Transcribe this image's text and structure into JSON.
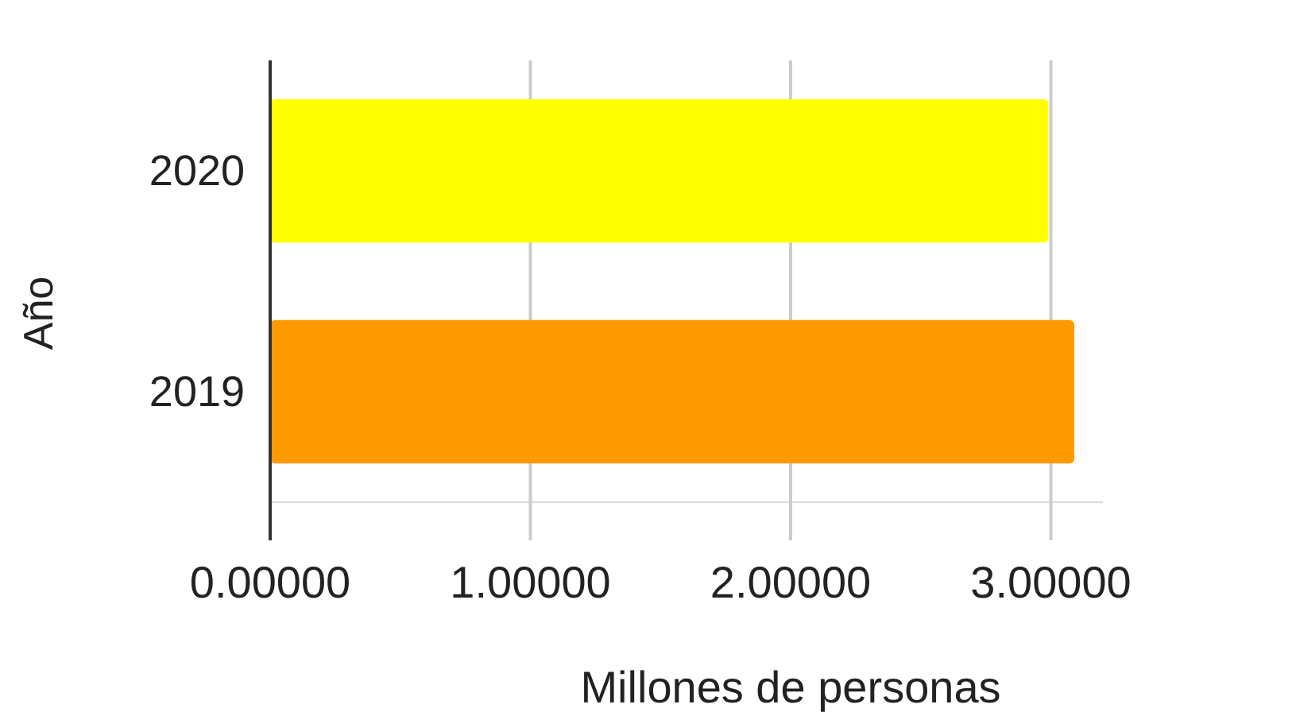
{
  "chart_data": {
    "type": "bar",
    "orientation": "horizontal",
    "categories": [
      "2020",
      "2019"
    ],
    "values": [
      2.99,
      3.09
    ],
    "colors": [
      "#ffff00",
      "#ff9900"
    ],
    "xlabel": "Millones de personas",
    "ylabel": "Año",
    "xlim": [
      0,
      3.2
    ],
    "xticks": [
      {
        "value": 0,
        "label": "0.00000"
      },
      {
        "value": 1,
        "label": "1.00000"
      },
      {
        "value": 2,
        "label": "2.00000"
      },
      {
        "value": 3,
        "label": "3.00000"
      }
    ],
    "grid": "x"
  }
}
